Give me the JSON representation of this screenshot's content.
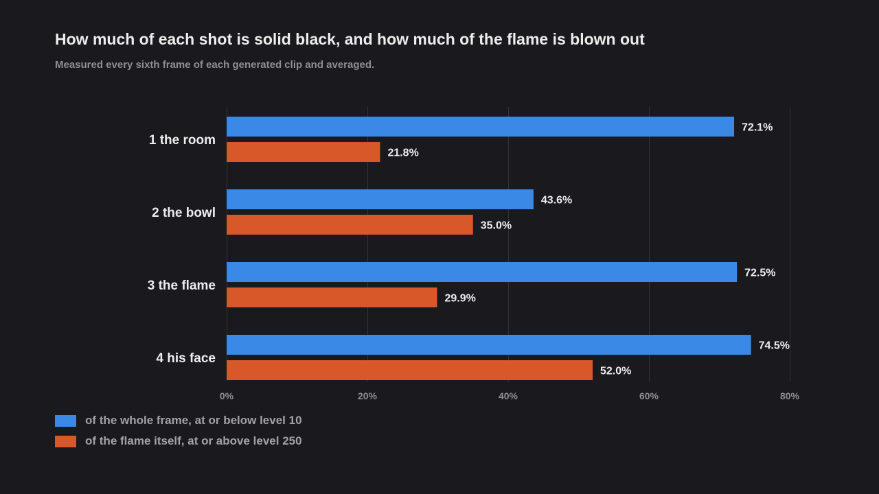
{
  "title": "How much of each shot is solid black, and how much of the flame is blown out",
  "subtitle": "Measured every sixth frame of each generated clip and averaged.",
  "colors": {
    "background": "#1a191d",
    "series_blue": "#3b89e6",
    "series_orange": "#d9582a",
    "grid": "#333237",
    "text": "#ededee",
    "muted_text": "#8f8e94"
  },
  "chart_data": {
    "type": "bar",
    "orientation": "horizontal",
    "title": "How much of each shot is solid black, and how much of the flame is blown out",
    "subtitle": "Measured every sixth frame of each generated clip and averaged.",
    "categories": [
      "1  the room",
      "2  the bowl",
      "3  the flame",
      "4  his face"
    ],
    "series": [
      {
        "name": "of the whole frame, at or below level 10",
        "color": "#3b89e6",
        "values": [
          72.1,
          43.6,
          72.5,
          74.5
        ],
        "labels": [
          "72.1%",
          "43.6%",
          "72.5%",
          "74.5%"
        ]
      },
      {
        "name": "of the flame itself, at or above level 250",
        "color": "#d9582a",
        "values": [
          21.8,
          35.0,
          29.9,
          52.0
        ],
        "labels": [
          "21.8%",
          "35.0%",
          "29.9%",
          "52.0%"
        ]
      }
    ],
    "xlim": [
      0,
      80
    ],
    "xticks": [
      0,
      20,
      40,
      60,
      80
    ],
    "xtick_labels": [
      "0%",
      "20%",
      "40%",
      "60%",
      "80%"
    ],
    "grid": "vertical",
    "legend_position": "bottom-left"
  }
}
